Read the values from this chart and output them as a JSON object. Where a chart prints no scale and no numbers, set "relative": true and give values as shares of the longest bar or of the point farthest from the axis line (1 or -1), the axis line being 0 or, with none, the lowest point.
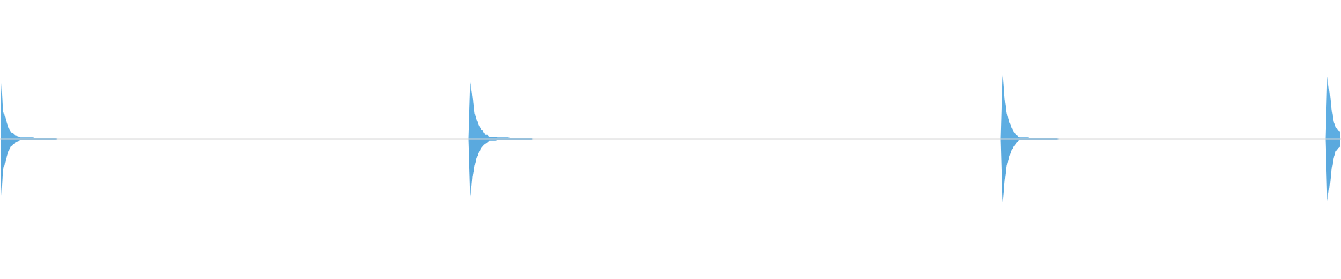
{
  "chart_data": {
    "type": "area",
    "relative": true,
    "categories": [
      null,
      null,
      null,
      null,
      null,
      null,
      null,
      null,
      null,
      null,
      null,
      null,
      null,
      null,
      null,
      null,
      null,
      null,
      null,
      null,
      null,
      null,
      null,
      null,
      null,
      null,
      null,
      null,
      null,
      null,
      null,
      null,
      null,
      null,
      null,
      null,
      null,
      null,
      null,
      null,
      null,
      null,
      null,
      null,
      null,
      null,
      null,
      null,
      null,
      null,
      null,
      null,
      null,
      null,
      null,
      null,
      null,
      null,
      null,
      null,
      null,
      null,
      null,
      null,
      null,
      null,
      null,
      null,
      null,
      null,
      null,
      null,
      null,
      null,
      null,
      null,
      null,
      null,
      null,
      null,
      null,
      null,
      null,
      null,
      null,
      null,
      null,
      null,
      null,
      null,
      null,
      null,
      null,
      null,
      null,
      null,
      null,
      null,
      null,
      null,
      null,
      null,
      null,
      null,
      null,
      null,
      null,
      null,
      null,
      null,
      null,
      null,
      null,
      null,
      null,
      null,
      null,
      null,
      null,
      null,
      null,
      null,
      null,
      null,
      null,
      null,
      null,
      null,
      null,
      null,
      null,
      null,
      null,
      null,
      null,
      null,
      null,
      null,
      null,
      null,
      null,
      null,
      null,
      null,
      null,
      null,
      null,
      null,
      null,
      null,
      null,
      null,
      null,
      null,
      null,
      null,
      null,
      null,
      null,
      null,
      null,
      null,
      null,
      null,
      null,
      null,
      null,
      null,
      null,
      null,
      null,
      null,
      null,
      null,
      null,
      null,
      null,
      null,
      null,
      null,
      null,
      null,
      null,
      null,
      null,
      null,
      null,
      null,
      null,
      null,
      null,
      null,
      null,
      null,
      null,
      null,
      null,
      null,
      null,
      null,
      null,
      null,
      null,
      null,
      null,
      null,
      null,
      null,
      null,
      null,
      null,
      null,
      null,
      null,
      null,
      null,
      null,
      null,
      null,
      null,
      null,
      null,
      null,
      null,
      null,
      null,
      null,
      null,
      null,
      null,
      null,
      null,
      null,
      null,
      null,
      null,
      null,
      null,
      null,
      null,
      null,
      null,
      null,
      null,
      null,
      null,
      null,
      null,
      null,
      null,
      null,
      null,
      null,
      null,
      null,
      null,
      null,
      null,
      null,
      null,
      null,
      null,
      null,
      null,
      null,
      null,
      null,
      null,
      null,
      null,
      null,
      null,
      null,
      null,
      null,
      null,
      null,
      null,
      null,
      null,
      null,
      null,
      null,
      null,
      null,
      null,
      null,
      null,
      null,
      null,
      null,
      null,
      null,
      null,
      null,
      null,
      null,
      null,
      null,
      null,
      null,
      null,
      null,
      null,
      null,
      null,
      null,
      null,
      null,
      null,
      null,
      null,
      null,
      null,
      null,
      null,
      null,
      null,
      null,
      null,
      null,
      null,
      null,
      null,
      null,
      null,
      null,
      null,
      null,
      null,
      null,
      null,
      null,
      null,
      null,
      null,
      null,
      null,
      null,
      null,
      null,
      null,
      null,
      null,
      null,
      null,
      null,
      null,
      null,
      null,
      null,
      null,
      null,
      null,
      null,
      null,
      null,
      null,
      null,
      null,
      null,
      null,
      null,
      null,
      null,
      null,
      null,
      null,
      null,
      null,
      null,
      null,
      null,
      null,
      null,
      null,
      null,
      null,
      null,
      null,
      null,
      null,
      null,
      null,
      null,
      null,
      null,
      null,
      null,
      null,
      null,
      null,
      null,
      null,
      null,
      null,
      null,
      null,
      null,
      null,
      null,
      null,
      null,
      null,
      null,
      null,
      null,
      null,
      null,
      null,
      null,
      null,
      null,
      null,
      null,
      null,
      null,
      null,
      null,
      null,
      null,
      null,
      null,
      null,
      null,
      null,
      null,
      null,
      null,
      null,
      null,
      null,
      null,
      null,
      null,
      null,
      null,
      null,
      null,
      null,
      null,
      null,
      null,
      null,
      null,
      null,
      null,
      null,
      null,
      null,
      null,
      null,
      null,
      null,
      null,
      null,
      null,
      null,
      null,
      null,
      null,
      null,
      null,
      null,
      null,
      null,
      null,
      null,
      null,
      null,
      null,
      null,
      null,
      null,
      null,
      null,
      null,
      null,
      null,
      null,
      null,
      null,
      null,
      null,
      null,
      null,
      null,
      null,
      null,
      null,
      null,
      null,
      null,
      null,
      null,
      null,
      null,
      null,
      null,
      null,
      null,
      null,
      null,
      null,
      null,
      null,
      null,
      null,
      null,
      null,
      null,
      null,
      null,
      null,
      null,
      null,
      null,
      null,
      null,
      null,
      null,
      null,
      null,
      null,
      null,
      null,
      null,
      null,
      null,
      null,
      null,
      null,
      null,
      null,
      null,
      null,
      null,
      null,
      null,
      null,
      null,
      null,
      null,
      null,
      null,
      null,
      null,
      null,
      null,
      null,
      null,
      null,
      null,
      null,
      null,
      null,
      null,
      null,
      null,
      null,
      null,
      null,
      null,
      null,
      null,
      null,
      null,
      null,
      null,
      null,
      null,
      null,
      null,
      null,
      null,
      null,
      null,
      null,
      null,
      null,
      null,
      null,
      null,
      null,
      null,
      null,
      null,
      null,
      null,
      null,
      null,
      null,
      null,
      null,
      null,
      null,
      null,
      null,
      null,
      null,
      null,
      null,
      null,
      null,
      null,
      null,
      null,
      null,
      null,
      null,
      null,
      null,
      null,
      null,
      null,
      null,
      null,
      null,
      null,
      null,
      null,
      null,
      null,
      null,
      null,
      null,
      null,
      null,
      null,
      null,
      null,
      null,
      null,
      null,
      null,
      null,
      null,
      null,
      null,
      null
    ],
    "series": [
      {
        "color": "#5dade2",
        "values": [
          0.97,
          0.45,
          0.33,
          0.23,
          0.15,
          0.1,
          0.08,
          0.05,
          0.04,
          0.02,
          0.02,
          0.02,
          0.02,
          0.02,
          0.02,
          0.02,
          0.01,
          0.01,
          0.01,
          0.01,
          0.01,
          0.01,
          0.01,
          0.01,
          0.01,
          0.01,
          0.01,
          0,
          0,
          0,
          0,
          0,
          0,
          0,
          0,
          0,
          0,
          0,
          0,
          0,
          0,
          0,
          0,
          0,
          0,
          0,
          0,
          0,
          0,
          0,
          0,
          0,
          0,
          0,
          0,
          0,
          0,
          0,
          0,
          0,
          0,
          0,
          0,
          0,
          0,
          0,
          0,
          0,
          0,
          0,
          0,
          0,
          0,
          0,
          0,
          0,
          0,
          0,
          0,
          0,
          0,
          0,
          0,
          0,
          0,
          0,
          0,
          0,
          0,
          0,
          0,
          0,
          0,
          0,
          0,
          0,
          0,
          0,
          0,
          0,
          0,
          0,
          0,
          0,
          0,
          0,
          0,
          0,
          0,
          0,
          0,
          0,
          0,
          0,
          0,
          0,
          0,
          0,
          0,
          0,
          0,
          0,
          0,
          0,
          0,
          0,
          0,
          0,
          0,
          0,
          0,
          0,
          0,
          0,
          0,
          0,
          0,
          0,
          0,
          0,
          0,
          0,
          0,
          0,
          0,
          0,
          0,
          0,
          0,
          0,
          0,
          0,
          0,
          0,
          0,
          0,
          0,
          0,
          0,
          0,
          0,
          0,
          0,
          0,
          0,
          0,
          0,
          0,
          0,
          0,
          0,
          0,
          0,
          0,
          0,
          0,
          0,
          0,
          0,
          0,
          0,
          0,
          0,
          0,
          0,
          0,
          0,
          0,
          0,
          0,
          0,
          0,
          0,
          0,
          0,
          0,
          0,
          0,
          0,
          0,
          0,
          0,
          0,
          0,
          0,
          0,
          0,
          0,
          0,
          0,
          0,
          0,
          0,
          0,
          0,
          0,
          0,
          0,
          0,
          0,
          0,
          0,
          0,
          0,
          0.89,
          0.66,
          0.4,
          0.3,
          0.22,
          0.15,
          0.12,
          0.07,
          0.07,
          0.03,
          0.03,
          0.03,
          0.03,
          0.02,
          0.02,
          0.02,
          0.02,
          0.02,
          0.02,
          0.01,
          0.01,
          0.01,
          0.01,
          0.01,
          0.01,
          0.01,
          0.01,
          0.01,
          0.01,
          0.01,
          0,
          0,
          0,
          0,
          0,
          0,
          0,
          0,
          0,
          0,
          0,
          0,
          0,
          0,
          0,
          0,
          0,
          0,
          0,
          0,
          0,
          0,
          0,
          0,
          0,
          0,
          0,
          0,
          0,
          0,
          0,
          0,
          0,
          0,
          0,
          0,
          0,
          0,
          0,
          0,
          0,
          0,
          0,
          0,
          0,
          0,
          0,
          0,
          0,
          0,
          0,
          0,
          0,
          0,
          0,
          0,
          0,
          0,
          0,
          0,
          0,
          0,
          0,
          0,
          0,
          0,
          0,
          0,
          0,
          0,
          0,
          0,
          0,
          0,
          0,
          0,
          0,
          0,
          0,
          0,
          0,
          0,
          0,
          0,
          0,
          0,
          0,
          0,
          0,
          0,
          0,
          0,
          0,
          0,
          0,
          0,
          0,
          0,
          0,
          0,
          0,
          0,
          0,
          0,
          0,
          0,
          0,
          0,
          0,
          0,
          0,
          0,
          0,
          0,
          0,
          0,
          0,
          0,
          0,
          0,
          0,
          0,
          0,
          0,
          0,
          0,
          0,
          0,
          0,
          0,
          0,
          0,
          0,
          0,
          0,
          0,
          0,
          0,
          0,
          0,
          0,
          0,
          0,
          0,
          0,
          0,
          0,
          0,
          0,
          0,
          0,
          0,
          0,
          0,
          0,
          0,
          0,
          0,
          0,
          0,
          0,
          0,
          0,
          0,
          0,
          0,
          0,
          0,
          0,
          0,
          0,
          0,
          0,
          0,
          0,
          0,
          0,
          0,
          0,
          0,
          0,
          0,
          0,
          0,
          0,
          0,
          0,
          0,
          0,
          0,
          0,
          0,
          0,
          0,
          0,
          0,
          0,
          0,
          0,
          0,
          0,
          0,
          0,
          0,
          0,
          0,
          0,
          0,
          0,
          0,
          0,
          0,
          0,
          0,
          0,
          0,
          0,
          0,
          0,
          0,
          0,
          0,
          0,
          0,
          1,
          0.62,
          0.4,
          0.28,
          0.2,
          0.13,
          0.08,
          0.05,
          0.02,
          0.02,
          0.02,
          0.02,
          0.02,
          0.01,
          0.01,
          0.01,
          0.01,
          0.01,
          0.01,
          0.01,
          0.01,
          0.01,
          0.01,
          0.01,
          0.01,
          0.01,
          0.01,
          0,
          0,
          0,
          0,
          0,
          0,
          0,
          0,
          0,
          0,
          0,
          0,
          0,
          0,
          0,
          0,
          0,
          0,
          0,
          0,
          0,
          0,
          0,
          0,
          0,
          0,
          0,
          0,
          0,
          0,
          0,
          0,
          0,
          0,
          0,
          0,
          0,
          0,
          0,
          0,
          0,
          0,
          0,
          0,
          0,
          0,
          0,
          0,
          0,
          0,
          0,
          0,
          0,
          0,
          0,
          0,
          0,
          0,
          0,
          0,
          0,
          0,
          0,
          0,
          0,
          0,
          0,
          0,
          0,
          0,
          0,
          0,
          0,
          0,
          0,
          0,
          0,
          0,
          0,
          0,
          0,
          0,
          0,
          0,
          0,
          0,
          0,
          0,
          0,
          0,
          0,
          0,
          0,
          0,
          0,
          0,
          0,
          0,
          0,
          0,
          0,
          0,
          0,
          0,
          0,
          0,
          0,
          0,
          0,
          0,
          0,
          0,
          0,
          0,
          0,
          0,
          0,
          0,
          0,
          0,
          0,
          0,
          0,
          0,
          0,
          0,
          0,
          0,
          0.98,
          0.73,
          0.45,
          0.27,
          0.19,
          0.13,
          0.11
        ]
      },
      {
        "color": "#5aa9de",
        "values": [
          -0.98,
          -0.5,
          -0.36,
          -0.25,
          -0.17,
          -0.11,
          -0.08,
          -0.06,
          -0.04,
          -0.02,
          -0.02,
          -0.02,
          -0.02,
          -0.02,
          -0.02,
          -0.02,
          -0.01,
          -0.01,
          -0.01,
          -0.01,
          -0.01,
          -0.01,
          -0.01,
          -0.01,
          -0.01,
          -0.01,
          -0.01,
          0,
          0,
          0,
          0,
          0,
          0,
          0,
          0,
          0,
          0,
          0,
          0,
          0,
          0,
          0,
          0,
          0,
          0,
          0,
          0,
          0,
          0,
          0,
          0,
          0,
          0,
          0,
          0,
          0,
          0,
          0,
          0,
          0,
          0,
          0,
          0,
          0,
          0,
          0,
          0,
          0,
          0,
          0,
          0,
          0,
          0,
          0,
          0,
          0,
          0,
          0,
          0,
          0,
          0,
          0,
          0,
          0,
          0,
          0,
          0,
          0,
          0,
          0,
          0,
          0,
          0,
          0,
          0,
          0,
          0,
          0,
          0,
          0,
          0,
          0,
          0,
          0,
          0,
          0,
          0,
          0,
          0,
          0,
          0,
          0,
          0,
          0,
          0,
          0,
          0,
          0,
          0,
          0,
          0,
          0,
          0,
          0,
          0,
          0,
          0,
          0,
          0,
          0,
          0,
          0,
          0,
          0,
          0,
          0,
          0,
          0,
          0,
          0,
          0,
          0,
          0,
          0,
          0,
          0,
          0,
          0,
          0,
          0,
          0,
          0,
          0,
          0,
          0,
          0,
          0,
          0,
          0,
          0,
          0,
          0,
          0,
          0,
          0,
          0,
          0,
          0,
          0,
          0,
          0,
          0,
          0,
          0,
          0,
          0,
          0,
          0,
          0,
          0,
          0,
          0,
          0,
          0,
          0,
          0,
          0,
          0,
          0,
          0,
          0,
          0,
          0,
          0,
          0,
          0,
          0,
          0,
          0,
          0,
          0,
          0,
          0,
          0,
          0,
          0,
          0,
          0,
          0,
          0,
          0,
          0,
          0,
          0,
          0,
          0,
          0,
          0,
          0,
          0,
          0,
          0,
          0,
          0,
          -0.91,
          -0.6,
          -0.42,
          -0.3,
          -0.22,
          -0.15,
          -0.11,
          -0.08,
          -0.06,
          -0.03,
          -0.03,
          -0.03,
          -0.03,
          -0.02,
          -0.02,
          -0.02,
          -0.02,
          -0.02,
          -0.02,
          -0.01,
          -0.01,
          -0.01,
          -0.01,
          -0.01,
          -0.01,
          -0.01,
          -0.01,
          -0.01,
          -0.01,
          -0.01,
          0,
          0,
          0,
          0,
          0,
          0,
          0,
          0,
          0,
          0,
          0,
          0,
          0,
          0,
          0,
          0,
          0,
          0,
          0,
          0,
          0,
          0,
          0,
          0,
          0,
          0,
          0,
          0,
          0,
          0,
          0,
          0,
          0,
          0,
          0,
          0,
          0,
          0,
          0,
          0,
          0,
          0,
          0,
          0,
          0,
          0,
          0,
          0,
          0,
          0,
          0,
          0,
          0,
          0,
          0,
          0,
          0,
          0,
          0,
          0,
          0,
          0,
          0,
          0,
          0,
          0,
          0,
          0,
          0,
          0,
          0,
          0,
          0,
          0,
          0,
          0,
          0,
          0,
          0,
          0,
          0,
          0,
          0,
          0,
          0,
          0,
          0,
          0,
          0,
          0,
          0,
          0,
          0,
          0,
          0,
          0,
          0,
          0,
          0,
          0,
          0,
          0,
          0,
          0,
          0,
          0,
          0,
          0,
          0,
          0,
          0,
          0,
          0,
          0,
          0,
          0,
          0,
          0,
          0,
          0,
          0,
          0,
          0,
          0,
          0,
          0,
          0,
          0,
          0,
          0,
          0,
          0,
          0,
          0,
          0,
          0,
          0,
          0,
          0,
          0,
          0,
          0,
          0,
          0,
          0,
          0,
          0,
          0,
          0,
          0,
          0,
          0,
          0,
          0,
          0,
          0,
          0,
          0,
          0,
          0,
          0,
          0,
          0,
          0,
          0,
          0,
          0,
          0,
          0,
          0,
          0,
          0,
          0,
          0,
          0,
          0,
          0,
          0,
          0,
          0,
          0,
          0,
          0,
          0,
          0,
          0,
          0,
          0,
          0,
          0,
          0,
          0,
          0,
          0,
          0,
          0,
          0,
          0,
          0,
          0,
          0,
          0,
          0,
          0,
          0,
          0,
          0,
          0,
          0,
          0,
          0,
          0,
          0,
          0,
          0,
          0,
          0,
          0,
          0,
          0,
          0,
          0,
          0,
          0,
          -1,
          -0.66,
          -0.42,
          -0.3,
          -0.2,
          -0.14,
          -0.09,
          -0.05,
          -0.02,
          -0.02,
          -0.02,
          -0.02,
          -0.02,
          -0.01,
          -0.01,
          -0.01,
          -0.01,
          -0.01,
          -0.01,
          -0.01,
          -0.01,
          -0.01,
          -0.01,
          -0.01,
          -0.01,
          -0.01,
          -0.01,
          0,
          0,
          0,
          0,
          0,
          0,
          0,
          0,
          0,
          0,
          0,
          0,
          0,
          0,
          0,
          0,
          0,
          0,
          0,
          0,
          0,
          0,
          0,
          0,
          0,
          0,
          0,
          0,
          0,
          0,
          0,
          0,
          0,
          0,
          0,
          0,
          0,
          0,
          0,
          0,
          0,
          0,
          0,
          0,
          0,
          0,
          0,
          0,
          0,
          0,
          0,
          0,
          0,
          0,
          0,
          0,
          0,
          0,
          0,
          0,
          0,
          0,
          0,
          0,
          0,
          0,
          0,
          0,
          0,
          0,
          0,
          0,
          0,
          0,
          0,
          0,
          0,
          0,
          0,
          0,
          0,
          0,
          0,
          0,
          0,
          0,
          0,
          0,
          0,
          0,
          0,
          0,
          0,
          0,
          0,
          0,
          0,
          0,
          0,
          0,
          0,
          0,
          0,
          0,
          0,
          0,
          0,
          0,
          0,
          0,
          0,
          0,
          0,
          0,
          0,
          0,
          0,
          0,
          0,
          0,
          0,
          0,
          0,
          0,
          0,
          0,
          0,
          0,
          -0.98,
          -0.75,
          -0.47,
          -0.3,
          -0.2,
          -0.15,
          -0.12
        ]
      }
    ]
  }
}
